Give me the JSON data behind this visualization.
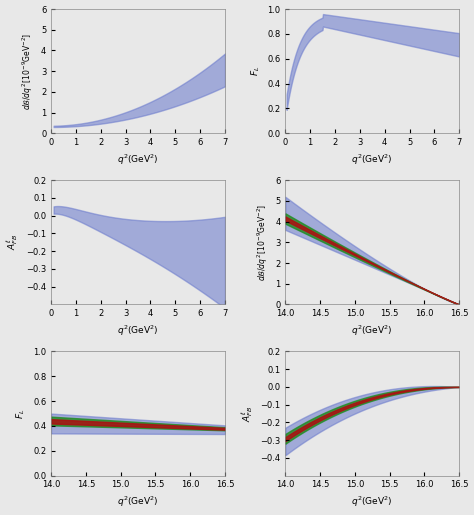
{
  "background_color": "#e8e8e8",
  "blue_color": "#6878cc",
  "blue_alpha": 0.55,
  "green_color": "#228b22",
  "green_alpha": 0.8,
  "red_color": "#aa1111",
  "red_alpha": 0.85,
  "low_q2_xlim": [
    0,
    7
  ],
  "low_q2_xticks": [
    0,
    1,
    2,
    3,
    4,
    5,
    6,
    7
  ],
  "high_q2_xlim": [
    14.0,
    16.5
  ],
  "high_q2_xticks": [
    14.0,
    14.5,
    15.0,
    15.5,
    16.0,
    16.5
  ],
  "panel1_ylim": [
    0,
    6
  ],
  "panel1_yticks": [
    0,
    1,
    2,
    3,
    4,
    5,
    6
  ],
  "panel2_ylim": [
    0.0,
    1.0
  ],
  "panel2_yticks": [
    0.0,
    0.2,
    0.4,
    0.6,
    0.8,
    1.0
  ],
  "panel3_ylim": [
    -0.5,
    0.2
  ],
  "panel3_yticks": [
    -0.4,
    -0.3,
    -0.2,
    -0.1,
    0.0,
    0.1,
    0.2
  ],
  "panel4_ylim": [
    0,
    6
  ],
  "panel4_yticks": [
    0,
    1,
    2,
    3,
    4,
    5,
    6
  ],
  "panel5_ylim": [
    0.0,
    1.0
  ],
  "panel5_yticks": [
    0.0,
    0.2,
    0.4,
    0.6,
    0.8,
    1.0
  ],
  "panel6_ylim": [
    -0.5,
    0.2
  ],
  "panel6_yticks": [
    -0.4,
    -0.3,
    -0.2,
    -0.1,
    0.0,
    0.1,
    0.2
  ]
}
